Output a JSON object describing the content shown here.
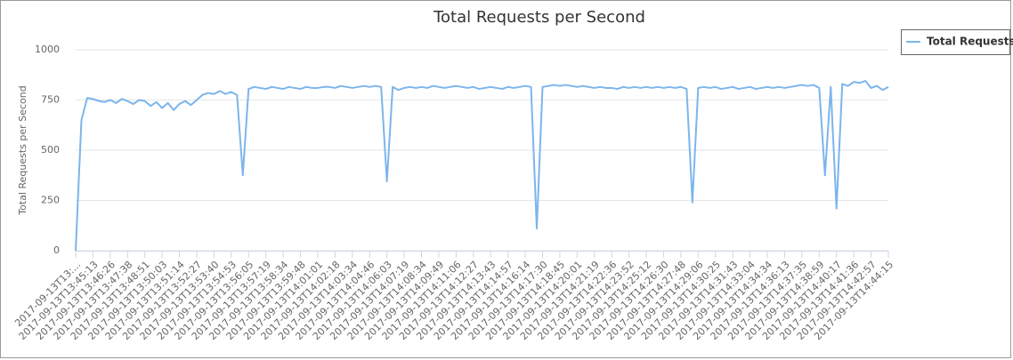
{
  "chart_data": {
    "type": "line",
    "title": "Total Requests per Second",
    "y_label": "Total Requests per Second",
    "categories": [
      "2017-09-13T13:...",
      null,
      null,
      "2017-09-13T13:45:13",
      null,
      null,
      "2017-09-13T13:46:26",
      null,
      null,
      "2017-09-13T13:47:38",
      null,
      null,
      "2017-09-13T13:48:51",
      null,
      null,
      "2017-09-13T13:50:03",
      null,
      null,
      "2017-09-13T13:51:14",
      null,
      null,
      "2017-09-13T13:52:27",
      null,
      null,
      "2017-09-13T13:53:40",
      null,
      null,
      "2017-09-13T13:54:53",
      null,
      null,
      "2017-09-13T13:56:05",
      null,
      null,
      "2017-09-13T13:57:19",
      null,
      null,
      "2017-09-13T13:58:34",
      null,
      null,
      "2017-09-13T13:59:48",
      null,
      null,
      "2017-09-13T14:01:01",
      null,
      null,
      "2017-09-13T14:02:18",
      null,
      null,
      "2017-09-13T14:03:34",
      null,
      null,
      "2017-09-13T14:04:46",
      null,
      null,
      "2017-09-13T14:06:03",
      null,
      null,
      "2017-09-13T14:07:19",
      null,
      null,
      "2017-09-13T14:08:34",
      null,
      null,
      "2017-09-13T14:09:49",
      null,
      null,
      "2017-09-13T14:11:06",
      null,
      null,
      "2017-09-13T14:12:27",
      null,
      null,
      "2017-09-13T14:13:43",
      null,
      null,
      "2017-09-13T14:14:57",
      null,
      null,
      "2017-09-13T14:16:14",
      null,
      null,
      "2017-09-13T14:17:30",
      null,
      null,
      "2017-09-13T14:18:45",
      null,
      null,
      "2017-09-13T14:20:01",
      null,
      null,
      "2017-09-13T14:21:19",
      null,
      null,
      "2017-09-13T14:22:36",
      null,
      null,
      "2017-09-13T14:23:52",
      null,
      null,
      "2017-09-13T14:25:12",
      null,
      null,
      "2017-09-13T14:26:30",
      null,
      null,
      "2017-09-13T14:27:48",
      null,
      null,
      "2017-09-13T14:29:06",
      null,
      null,
      "2017-09-13T14:30:25",
      null,
      null,
      "2017-09-13T14:31:43",
      null,
      null,
      "2017-09-13T14:33:04",
      null,
      null,
      "2017-09-13T14:34:34",
      null,
      null,
      "2017-09-13T14:36:13",
      null,
      null,
      "2017-09-13T14:37:35",
      null,
      null,
      "2017-09-13T14:38:59",
      null,
      null,
      "2017-09-13T14:40:17",
      null,
      null,
      "2017-09-13T14:41:36",
      null,
      null,
      "2017-09-13T14:42:57",
      null,
      null,
      "2017-09-13T14:44:15"
    ],
    "series": [
      {
        "name": "Total Requests",
        "color": "#7cb5ec",
        "values": [
          0,
          650,
          760,
          755,
          745,
          740,
          750,
          735,
          755,
          745,
          730,
          750,
          745,
          720,
          740,
          710,
          735,
          700,
          730,
          745,
          725,
          750,
          775,
          785,
          780,
          795,
          780,
          790,
          775,
          375,
          805,
          815,
          810,
          805,
          815,
          810,
          805,
          815,
          810,
          805,
          815,
          810,
          810,
          815,
          815,
          810,
          820,
          815,
          810,
          815,
          820,
          815,
          820,
          815,
          345,
          815,
          800,
          810,
          815,
          810,
          815,
          810,
          820,
          815,
          810,
          815,
          820,
          815,
          810,
          815,
          805,
          810,
          815,
          810,
          805,
          815,
          810,
          815,
          820,
          815,
          110,
          815,
          820,
          825,
          820,
          825,
          820,
          815,
          820,
          815,
          810,
          815,
          810,
          810,
          805,
          815,
          810,
          815,
          810,
          815,
          810,
          815,
          810,
          815,
          810,
          815,
          805,
          240,
          810,
          815,
          810,
          815,
          805,
          810,
          815,
          805,
          810,
          815,
          805,
          810,
          815,
          810,
          815,
          810,
          815,
          820,
          825,
          820,
          825,
          810,
          375,
          815,
          210,
          830,
          820,
          840,
          835,
          845,
          810,
          820,
          800,
          815
        ]
      }
    ],
    "ylim": [
      0,
      1000
    ],
    "yticks": [
      0,
      250,
      500,
      750,
      1000
    ],
    "grid": true,
    "legend": "top-right"
  }
}
